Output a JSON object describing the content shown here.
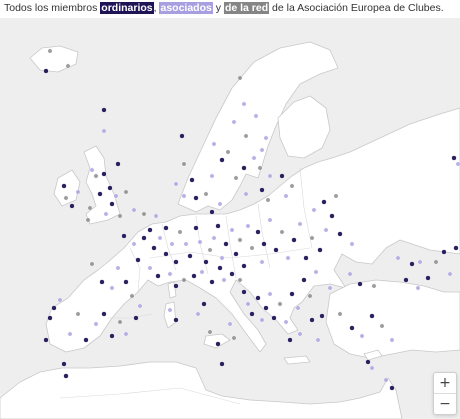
{
  "caption": {
    "prefix": "Todos los miembros ",
    "ordinarios": "ordinarios",
    "sep1": ", ",
    "asociados": "asociados",
    "sep2": " y ",
    "red": "de la red",
    "suffix": " de la Asociación Europea de Clubes."
  },
  "colors": {
    "ordinarios": "#1f1556",
    "asociados": "#a89fe0",
    "red": "#858585",
    "land": "#ffffff",
    "sea": "#eeeeee",
    "border": "#c8c8c8"
  },
  "zoom_controls": {
    "zoom_in": "+",
    "zoom_out": "−"
  }
}
